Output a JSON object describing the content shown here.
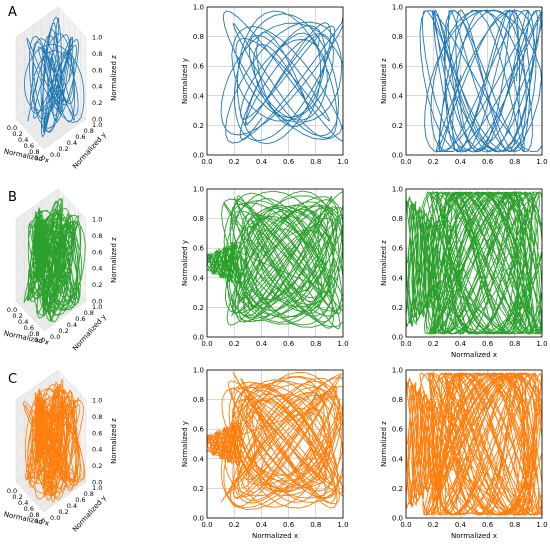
{
  "chart_data": {
    "type": "line",
    "rows": [
      {
        "label": "A",
        "color": "#1f77b4",
        "style": "sparse",
        "show_xlabel_2d": false
      },
      {
        "label": "B",
        "color": "#2ca02c",
        "style": "dense",
        "show_xlabel_2d": true
      },
      {
        "label": "C",
        "color": "#ff7f0e",
        "style": "dense",
        "show_xlabel_2d": true
      }
    ],
    "panels_per_row": [
      "3d x-y-z trajectory",
      "x-y projection",
      "x-z projection"
    ],
    "axis_labels": {
      "x": "Normalized x",
      "y": "Normalized y",
      "z": "Normalized z"
    },
    "xlim": [
      0,
      1
    ],
    "ylim": [
      0,
      1
    ],
    "zlim": [
      0,
      1
    ],
    "ticks_2d": [
      "0.0",
      "0.2",
      "0.4",
      "0.6",
      "0.8",
      "1.0"
    ],
    "ticks_3d": [
      "0.0",
      "0.2",
      "0.4",
      "0.6",
      "0.8",
      "1.0"
    ],
    "grid": true
  }
}
